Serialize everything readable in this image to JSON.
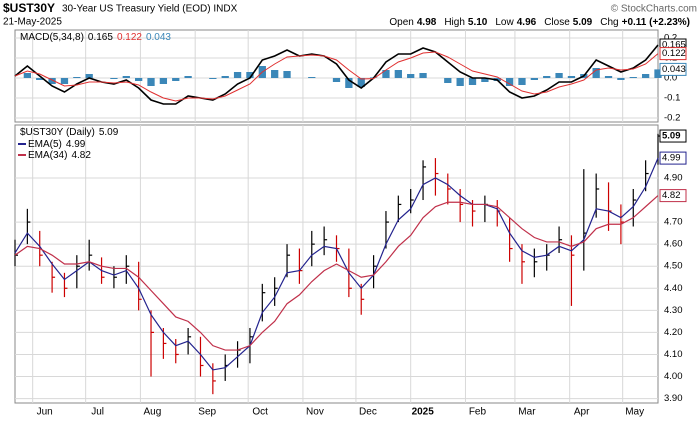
{
  "header": {
    "symbol": "$UST30Y",
    "name": "30-Year US Treasury Yield (EOD) INDX",
    "copyright": "© StockCharts.com",
    "date": "21-May-2025",
    "stats": [
      {
        "label": "Open",
        "value": "4.98"
      },
      {
        "label": "High",
        "value": "5.10"
      },
      {
        "label": "Low",
        "value": "4.96"
      },
      {
        "label": "Close",
        "value": "5.09"
      },
      {
        "label": "Chg",
        "value": "+0.11 (+2.23%)"
      }
    ]
  },
  "chart_data": [
    {
      "type": "macd",
      "title": "MACD(5,34,8)",
      "x": [
        0,
        7,
        14,
        21,
        28,
        35,
        42,
        49,
        56,
        63,
        70,
        77,
        84,
        91,
        98,
        105,
        112,
        119,
        126,
        133,
        140,
        147,
        154,
        161,
        168,
        175,
        182,
        189,
        196,
        203,
        210,
        217,
        224,
        231,
        238,
        245,
        252,
        259,
        266,
        273,
        280,
        287,
        294,
        301,
        308,
        315,
        322,
        329,
        336,
        343,
        350,
        357,
        364
      ],
      "xlim": [
        0,
        364
      ],
      "ylim": [
        -0.22,
        0.24
      ],
      "grid": true,
      "yticks": [
        -0.2,
        -0.1,
        {
          "value": 0,
          "label": "0.0"
        },
        0.1,
        0.2
      ],
      "series": [
        {
          "color": "#000000",
          "style": "line",
          "values": [
            0.01,
            0.06,
            0.01,
            -0.04,
            -0.07,
            -0.03,
            0.0,
            -0.02,
            -0.03,
            -0.01,
            -0.05,
            -0.11,
            -0.13,
            -0.13,
            -0.09,
            -0.1,
            -0.11,
            -0.08,
            -0.03,
            0.0,
            0.09,
            0.11,
            0.14,
            0.11,
            0.12,
            0.11,
            0.07,
            -0.01,
            -0.05,
            0.0,
            0.08,
            0.12,
            0.12,
            0.15,
            0.13,
            0.08,
            0.03,
            0.0,
            0.0,
            -0.01,
            -0.07,
            -0.1,
            -0.09,
            -0.06,
            -0.02,
            -0.02,
            0.01,
            0.09,
            0.06,
            0.03,
            0.05,
            0.09,
            0.165
          ]
        },
        {
          "color": "#e03030",
          "style": "line",
          "values": [
            0.01,
            0.035,
            0.02,
            -0.01,
            -0.04,
            -0.035,
            -0.02,
            -0.02,
            -0.025,
            -0.02,
            -0.035,
            -0.07,
            -0.1,
            -0.115,
            -0.1,
            -0.1,
            -0.105,
            -0.09,
            -0.06,
            -0.03,
            0.03,
            0.07,
            0.105,
            0.11,
            0.115,
            0.11,
            0.09,
            0.04,
            -0.005,
            -0.003,
            0.04,
            0.08,
            0.1,
            0.125,
            0.13,
            0.105,
            0.07,
            0.035,
            0.02,
            0.005,
            -0.03,
            -0.065,
            -0.08,
            -0.07,
            -0.045,
            -0.03,
            -0.01,
            0.04,
            0.05,
            0.04,
            0.045,
            0.07,
            0.122
          ]
        },
        {
          "color": "#3b87b8",
          "style": "bar",
          "values": [
            0,
            0.025,
            -0.01,
            -0.03,
            -0.03,
            0.005,
            0.02,
            0,
            -0.005,
            0.01,
            -0.015,
            -0.04,
            -0.03,
            -0.015,
            0.01,
            0,
            -0.005,
            0.01,
            0.03,
            0.03,
            0.06,
            0.04,
            0.035,
            0,
            0.005,
            0,
            -0.02,
            -0.05,
            -0.045,
            0.003,
            0.04,
            0.04,
            0.02,
            0.025,
            0,
            -0.025,
            -0.04,
            -0.035,
            -0.02,
            -0.015,
            -0.04,
            -0.035,
            -0.01,
            0.01,
            0.025,
            0.01,
            0.02,
            0.05,
            0.01,
            -0.01,
            0.005,
            0.02,
            0.043
          ]
        }
      ]
    },
    {
      "type": "ohlc",
      "name": "$UST30Y (Daily)",
      "x": [
        0,
        7,
        14,
        21,
        28,
        35,
        42,
        49,
        56,
        63,
        70,
        77,
        84,
        91,
        98,
        105,
        112,
        119,
        126,
        133,
        140,
        147,
        154,
        161,
        168,
        175,
        182,
        189,
        196,
        203,
        210,
        217,
        224,
        231,
        238,
        245,
        252,
        259,
        266,
        273,
        280,
        287,
        294,
        301,
        308,
        315,
        322,
        329,
        336,
        343,
        350,
        357,
        364
      ],
      "xlim": [
        0,
        364
      ],
      "ylim": [
        3.88,
        5.14
      ],
      "grid": true,
      "up_color": "#000000",
      "down_color": "#cc0000",
      "xticks": [
        {
          "value": 10,
          "label": "Jun"
        },
        {
          "value": 40,
          "label": "Jul"
        },
        {
          "value": 71,
          "label": "Aug"
        },
        {
          "value": 102,
          "label": "Sep"
        },
        {
          "value": 132,
          "label": "Oct"
        },
        {
          "value": 163,
          "label": "Nov"
        },
        {
          "value": 193,
          "label": "Dec"
        },
        {
          "value": 224,
          "label": "2025"
        },
        {
          "value": 255,
          "label": "Feb"
        },
        {
          "value": 283,
          "label": "Mar"
        },
        {
          "value": 314,
          "label": "Apr"
        },
        {
          "value": 344,
          "label": "May"
        }
      ],
      "yticks": [
        {
          "value": 3.9,
          "label": "3.90"
        },
        {
          "value": 4.0,
          "label": "4.00"
        },
        {
          "value": 4.1,
          "label": "4.10"
        },
        {
          "value": 4.2,
          "label": "4.20"
        },
        {
          "value": 4.3,
          "label": "4.30"
        },
        {
          "value": 4.4,
          "label": "4.40"
        },
        {
          "value": 4.5,
          "label": "4.50"
        },
        {
          "value": 4.6,
          "label": "4.60"
        },
        {
          "value": 4.7,
          "label": "4.70"
        },
        {
          "value": 4.9,
          "label": "4.90"
        }
      ],
      "high": [
        4.62,
        4.76,
        4.66,
        4.52,
        4.47,
        4.55,
        4.62,
        4.54,
        4.5,
        4.55,
        4.52,
        4.3,
        4.22,
        4.17,
        4.22,
        4.18,
        4.06,
        4.1,
        4.16,
        4.22,
        4.42,
        4.45,
        4.6,
        4.58,
        4.66,
        4.68,
        4.64,
        4.58,
        4.42,
        4.55,
        4.75,
        4.82,
        4.85,
        4.98,
        4.99,
        4.92,
        4.85,
        4.8,
        4.82,
        4.8,
        4.72,
        4.6,
        4.58,
        4.6,
        4.68,
        4.64,
        4.94,
        4.92,
        4.88,
        4.78,
        4.85,
        4.98,
        5.1
      ],
      "low": [
        4.5,
        4.6,
        4.5,
        4.38,
        4.36,
        4.4,
        4.48,
        4.42,
        4.4,
        4.42,
        4.3,
        4.0,
        4.08,
        4.06,
        4.1,
        4.0,
        3.92,
        3.98,
        4.04,
        4.06,
        4.25,
        4.32,
        4.45,
        4.42,
        4.5,
        4.55,
        4.52,
        4.36,
        4.28,
        4.4,
        4.58,
        4.7,
        4.74,
        4.8,
        4.82,
        4.78,
        4.7,
        4.68,
        4.7,
        4.68,
        4.52,
        4.42,
        4.45,
        4.48,
        4.56,
        4.32,
        4.48,
        4.72,
        4.66,
        4.6,
        4.68,
        4.84,
        4.96
      ],
      "close": [
        4.55,
        4.7,
        4.55,
        4.45,
        4.4,
        4.5,
        4.55,
        4.45,
        4.45,
        4.5,
        4.35,
        4.2,
        4.15,
        4.1,
        4.18,
        4.05,
        3.98,
        4.05,
        4.12,
        4.18,
        4.38,
        4.4,
        4.55,
        4.48,
        4.6,
        4.62,
        4.58,
        4.4,
        4.35,
        4.5,
        4.7,
        4.78,
        4.8,
        4.95,
        4.92,
        4.85,
        4.78,
        4.75,
        4.78,
        4.75,
        4.58,
        4.52,
        4.52,
        4.55,
        4.62,
        4.55,
        4.65,
        4.85,
        4.75,
        4.7,
        4.8,
        4.92,
        5.09
      ],
      "series": [
        {
          "name": "EMA(5)",
          "color": "#23238e",
          "values": [
            4.56,
            4.65,
            4.59,
            4.51,
            4.44,
            4.48,
            4.52,
            4.48,
            4.46,
            4.48,
            4.4,
            4.28,
            4.2,
            4.14,
            4.16,
            4.1,
            4.03,
            4.04,
            4.09,
            4.14,
            4.29,
            4.36,
            4.47,
            4.48,
            4.55,
            4.59,
            4.58,
            4.47,
            4.4,
            4.46,
            4.6,
            4.71,
            4.76,
            4.87,
            4.9,
            4.87,
            4.82,
            4.78,
            4.78,
            4.76,
            4.65,
            4.57,
            4.54,
            4.55,
            4.59,
            4.57,
            4.62,
            4.76,
            4.75,
            4.72,
            4.77,
            4.86,
            4.99
          ]
        },
        {
          "name": "EMA(34)",
          "color": "#c0304a",
          "values": [
            4.55,
            4.59,
            4.58,
            4.55,
            4.51,
            4.51,
            4.52,
            4.5,
            4.49,
            4.49,
            4.45,
            4.39,
            4.33,
            4.27,
            4.25,
            4.2,
            4.14,
            4.12,
            4.12,
            4.14,
            4.2,
            4.25,
            4.33,
            4.37,
            4.43,
            4.48,
            4.51,
            4.48,
            4.45,
            4.46,
            4.52,
            4.59,
            4.64,
            4.72,
            4.77,
            4.79,
            4.79,
            4.78,
            4.78,
            4.77,
            4.72,
            4.67,
            4.63,
            4.61,
            4.61,
            4.59,
            4.61,
            4.67,
            4.69,
            4.69,
            4.72,
            4.77,
            4.82
          ]
        }
      ]
    }
  ]
}
